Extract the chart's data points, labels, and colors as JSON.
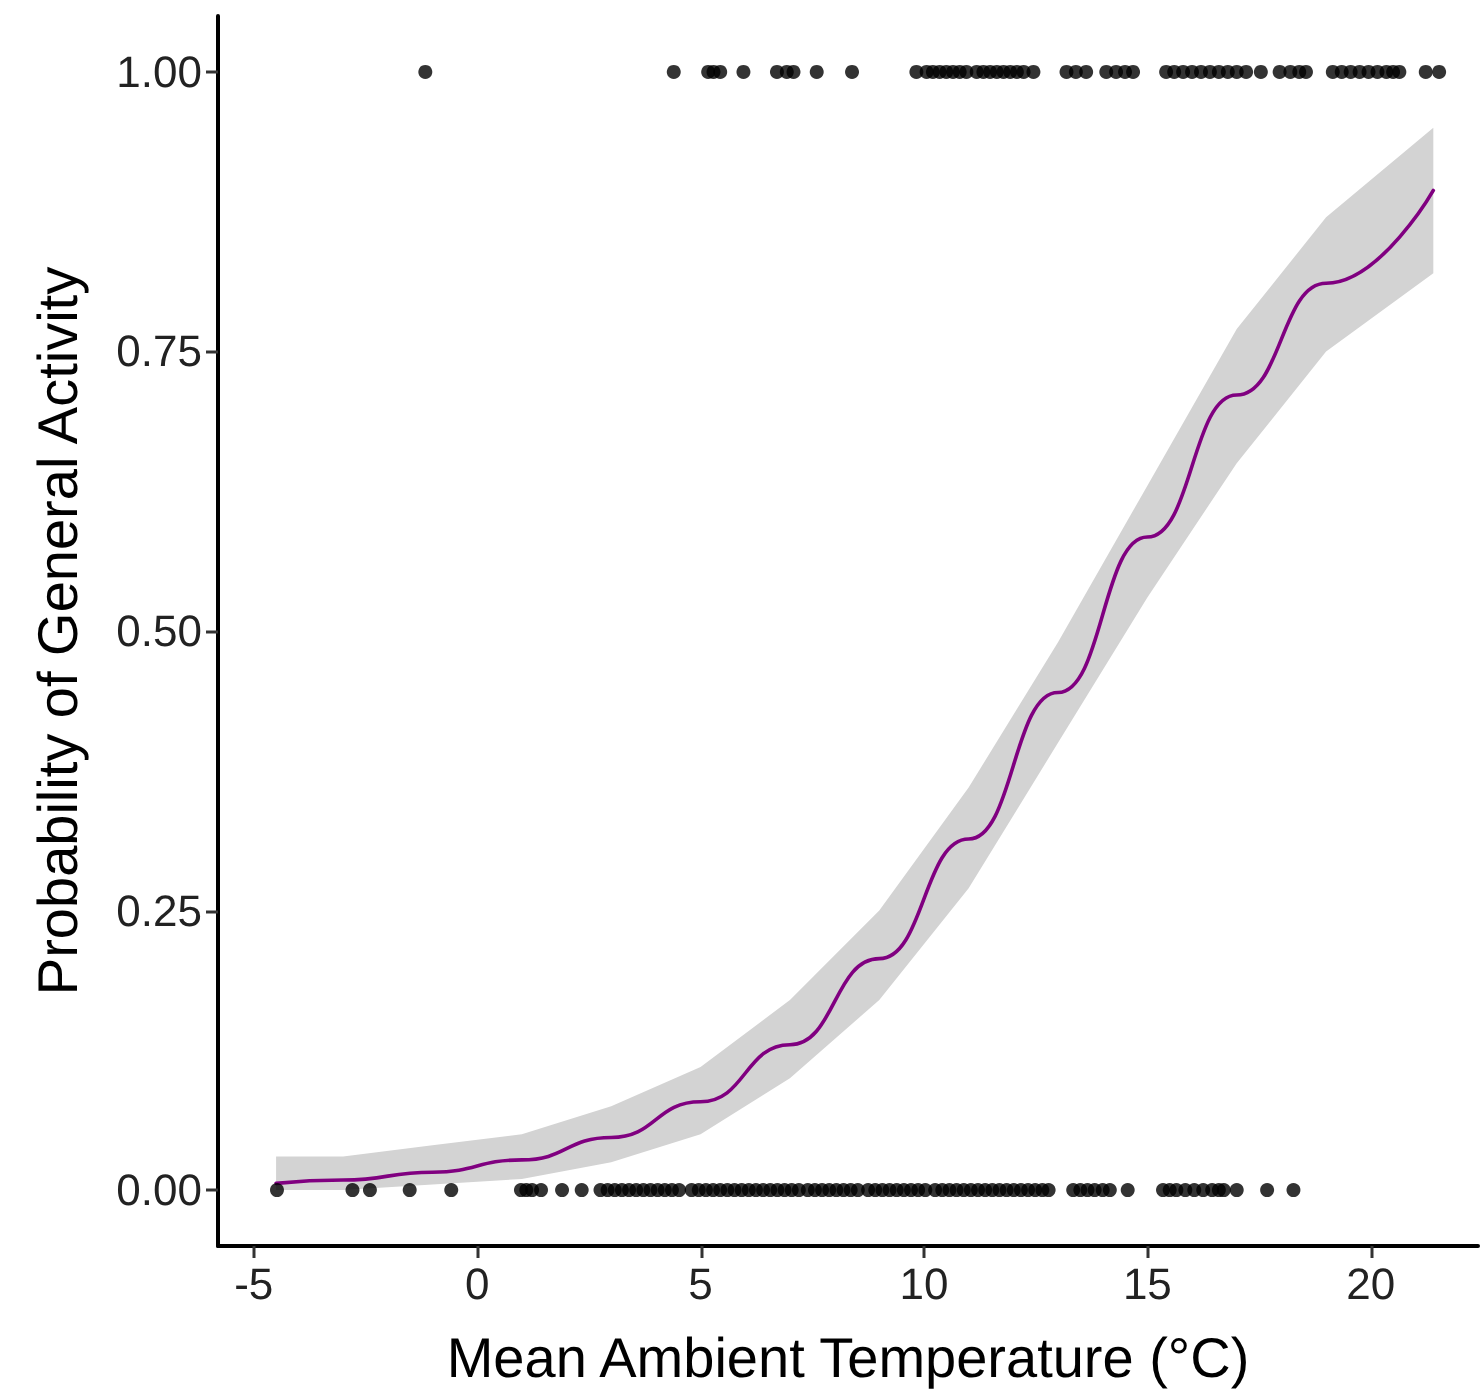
{
  "chart_data": {
    "type": "scatter",
    "xlabel": "Mean Ambient Temperature (°C)",
    "ylabel": "Probability of General Activity",
    "marker": "circle",
    "xlim": [
      -5.8,
      22.4
    ],
    "ylim": [
      -0.05,
      1.05
    ],
    "xticks": [
      -5,
      0,
      5,
      10,
      15,
      20
    ],
    "yticks": [
      {
        "value": 0,
        "label": "0.00"
      },
      {
        "value": 0.25,
        "label": "0.25"
      },
      {
        "value": 0.5,
        "label": "0.50"
      },
      {
        "value": 0.75,
        "label": "0.75"
      },
      {
        "value": 1,
        "label": "1.00"
      }
    ],
    "series": [
      {
        "type": "line",
        "marker": "none",
        "color": "#800080",
        "x": [
          -4.5,
          -3,
          -1,
          1,
          3,
          5,
          7,
          9,
          11,
          13,
          15,
          17,
          19,
          21.4
        ],
        "values": [
          0.006,
          0.009,
          0.016,
          0.027,
          0.047,
          0.079,
          0.13,
          0.207,
          0.314,
          0.445,
          0.584,
          0.711,
          0.811,
          0.894
        ],
        "lower": [
          0,
          0,
          0.005,
          0.01,
          0.025,
          0.05,
          0.1,
          0.17,
          0.27,
          0.4,
          0.53,
          0.65,
          0.75,
          0.82
        ],
        "upper": [
          0.03,
          0.03,
          0.04,
          0.05,
          0.075,
          0.11,
          0.17,
          0.25,
          0.36,
          0.49,
          0.63,
          0.77,
          0.87,
          0.95
        ]
      },
      {
        "color": "#000000",
        "x": [
          -1.16,
          4.4,
          5.17,
          5.29,
          5.44,
          5.96,
          6.71,
          6.93,
          7.08,
          7.6,
          8.39,
          9.83,
          10.06,
          10.2,
          10.35,
          10.5,
          10.65,
          10.8,
          10.95,
          11.18,
          11.33,
          11.48,
          11.63,
          11.78,
          11.93,
          12.08,
          12.23,
          12.45,
          13.19,
          13.4,
          13.63,
          14.08,
          14.3,
          14.5,
          14.68,
          15.42,
          15.6,
          15.8,
          16.0,
          16.2,
          16.4,
          16.6,
          16.8,
          17.0,
          17.21,
          17.54,
          17.96,
          18.2,
          18.4,
          18.55,
          19.15,
          19.35,
          19.55,
          19.75,
          19.95,
          20.15,
          20.35,
          20.5,
          20.64,
          21.23,
          21.53
        ],
        "values": [
          1,
          1,
          1,
          1,
          1,
          1,
          1,
          1,
          1,
          1,
          1,
          1,
          1,
          1,
          1,
          1,
          1,
          1,
          1,
          1,
          1,
          1,
          1,
          1,
          1,
          1,
          1,
          1,
          1,
          1,
          1,
          1,
          1,
          1,
          1,
          1,
          1,
          1,
          1,
          1,
          1,
          1,
          1,
          1,
          1,
          1,
          1,
          1,
          1,
          1,
          1,
          1,
          1,
          1,
          1,
          1,
          1,
          1,
          1,
          1,
          1
        ]
      },
      {
        "color": "#000000",
        "x": [
          -4.48,
          -2.79,
          -2.4,
          -1.51,
          -0.58,
          0.98,
          1.1,
          1.23,
          1.43,
          1.9,
          2.34,
          2.76,
          2.92,
          3.08,
          3.24,
          3.4,
          3.56,
          3.72,
          3.88,
          4.04,
          4.2,
          4.36,
          4.52,
          4.8,
          4.96,
          5.12,
          5.28,
          5.44,
          5.6,
          5.76,
          5.92,
          6.08,
          6.24,
          6.4,
          6.56,
          6.72,
          6.88,
          7.04,
          7.2,
          7.4,
          7.56,
          7.72,
          7.88,
          8.04,
          8.2,
          8.36,
          8.52,
          8.75,
          8.91,
          9.07,
          9.23,
          9.39,
          9.55,
          9.71,
          9.87,
          10.03,
          10.25,
          10.41,
          10.57,
          10.73,
          10.89,
          11.05,
          11.21,
          11.37,
          11.53,
          11.69,
          11.85,
          12.01,
          12.17,
          12.33,
          12.49,
          12.65,
          12.79,
          13.34,
          13.5,
          13.66,
          13.82,
          14.0,
          14.16,
          14.56,
          15.35,
          15.5,
          15.65,
          15.85,
          16.05,
          16.25,
          16.45,
          16.6,
          16.71,
          17.0,
          17.68,
          18.27
        ],
        "values": [
          0,
          0,
          0,
          0,
          0,
          0,
          0,
          0,
          0,
          0,
          0,
          0,
          0,
          0,
          0,
          0,
          0,
          0,
          0,
          0,
          0,
          0,
          0,
          0,
          0,
          0,
          0,
          0,
          0,
          0,
          0,
          0,
          0,
          0,
          0,
          0,
          0,
          0,
          0,
          0,
          0,
          0,
          0,
          0,
          0,
          0,
          0,
          0,
          0,
          0,
          0,
          0,
          0,
          0,
          0,
          0,
          0,
          0,
          0,
          0,
          0,
          0,
          0,
          0,
          0,
          0,
          0,
          0,
          0,
          0,
          0,
          0,
          0,
          0,
          0,
          0,
          0,
          0,
          0,
          0,
          0,
          0,
          0,
          0,
          0,
          0,
          0,
          0,
          0,
          0,
          0,
          0
        ]
      }
    ]
  }
}
